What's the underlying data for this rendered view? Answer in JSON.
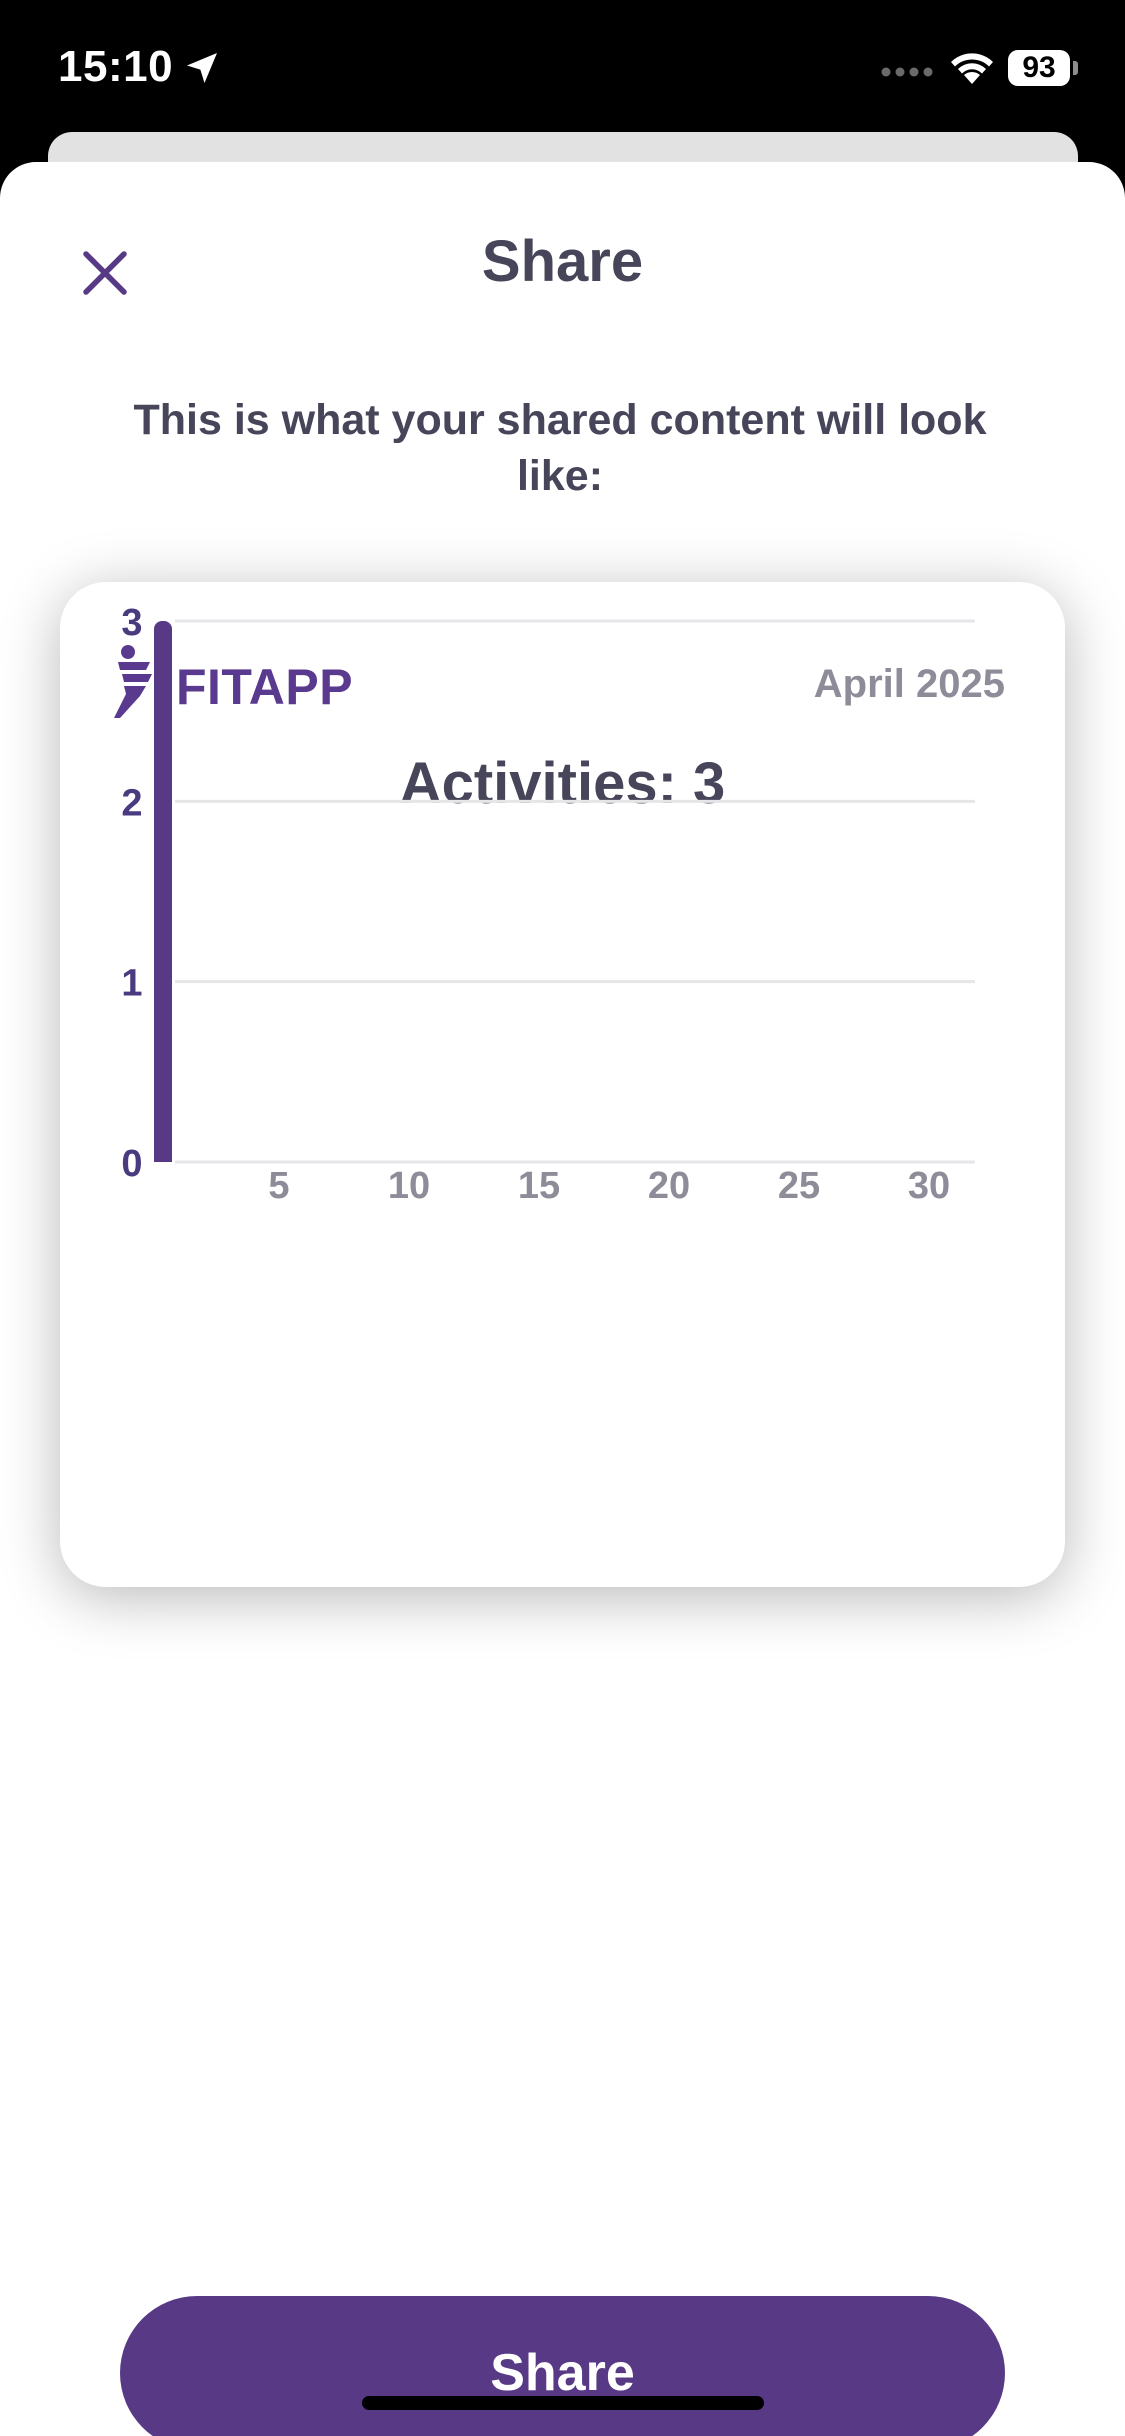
{
  "status_bar": {
    "time": "15:10",
    "battery": "93"
  },
  "sheet": {
    "title": "Share",
    "subtitle": "This is what your shared content will look like:"
  },
  "card": {
    "brand": "FITAPP",
    "date": "April 2025",
    "heading": "Activities: 3"
  },
  "colors": {
    "accent": "#573985",
    "text_dark": "#464559",
    "text_muted": "#8d8c98"
  },
  "chart_data": {
    "type": "bar",
    "x": [
      1
    ],
    "values": [
      3
    ],
    "x_ticks": [
      "5",
      "10",
      "15",
      "20",
      "25",
      "30"
    ],
    "y_ticks": [
      "0",
      "1",
      "2",
      "3"
    ],
    "xlim": [
      0,
      31
    ],
    "ylim": [
      0,
      3
    ],
    "grid": true,
    "color": "#573985"
  },
  "actions": {
    "share_label": "Share"
  },
  "icons": {
    "close": "close-icon",
    "location": "location-arrow-icon",
    "wifi": "wifi-icon",
    "logo": "runner-logo-icon"
  }
}
